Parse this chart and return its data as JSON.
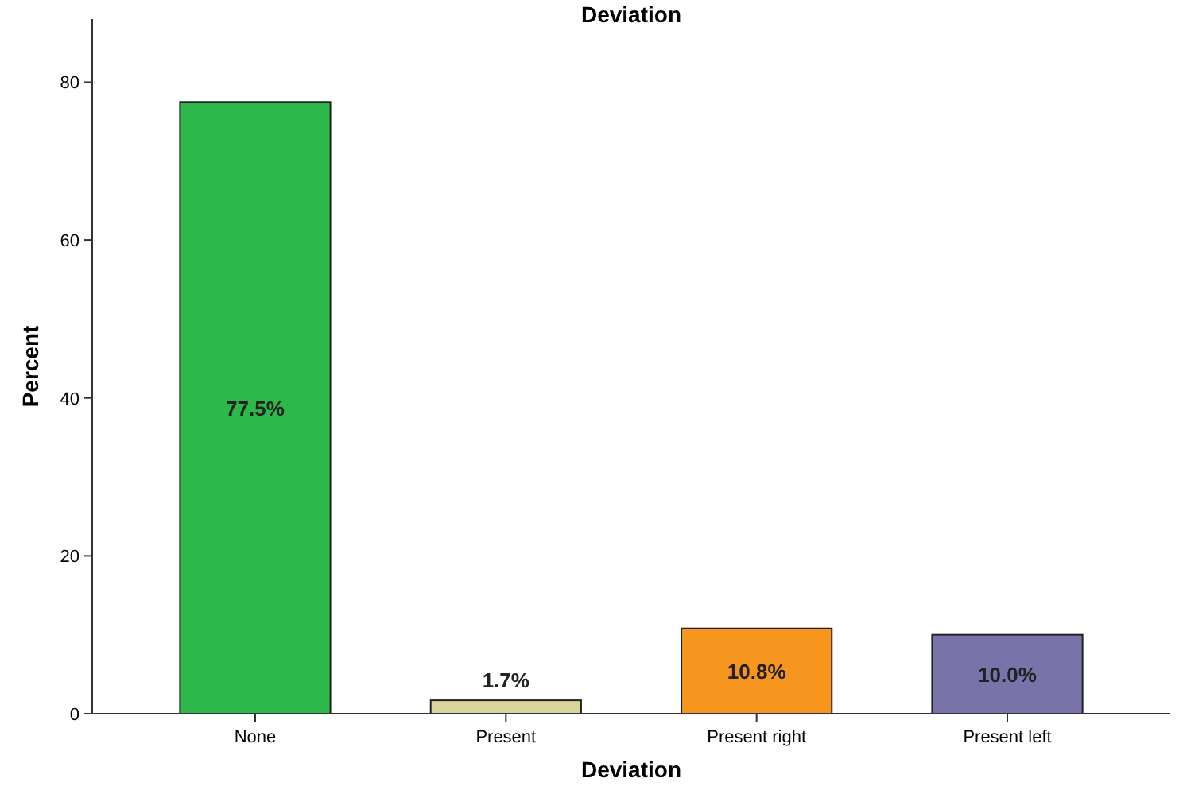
{
  "chart_data": {
    "type": "bar",
    "title": "Deviation",
    "xlabel": "Deviation",
    "ylabel": "Percent",
    "categories": [
      "None",
      "Present",
      "Present right",
      "Present left"
    ],
    "values": [
      77.5,
      1.7,
      10.8,
      10.0
    ],
    "colors": [
      "#2db84a",
      "#d8d49c",
      "#f7961e",
      "#7874aa"
    ],
    "value_labels": [
      "77.5%",
      "1.7%",
      "10.8%",
      "10.0%"
    ],
    "ylim": [
      0,
      88
    ],
    "yticks": [
      0,
      20,
      40,
      60,
      80
    ],
    "grid": false
  }
}
